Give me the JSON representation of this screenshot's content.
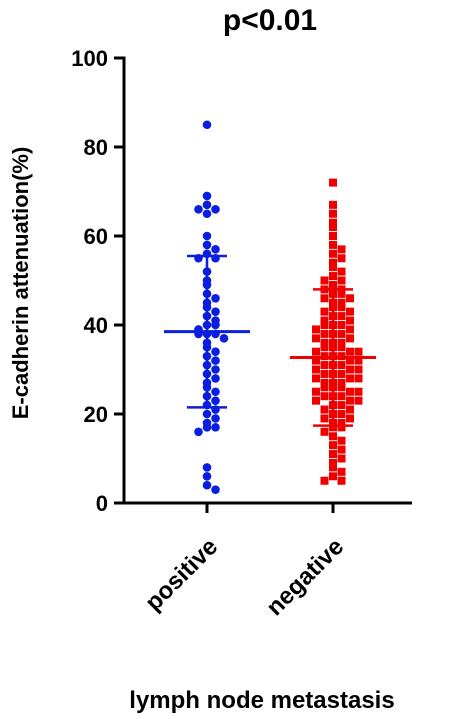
{
  "chart_data": {
    "type": "strip",
    "title": "p<0.01",
    "y_label": "E-cadherin attenuation(%)",
    "x_label": "lymph node metastasis",
    "categories": [
      "positive",
      "negative"
    ],
    "ylim": [
      0,
      100
    ],
    "yticks": [
      0,
      20,
      40,
      60,
      80,
      100
    ],
    "series": [
      {
        "name": "positive",
        "color": "#0a1ee0",
        "marker": "circle",
        "mean": 38.5,
        "sd": 17,
        "values": [
          85,
          69,
          67,
          66,
          66,
          65,
          60,
          58,
          57,
          56,
          55,
          55,
          52,
          50,
          49,
          47,
          46,
          45,
          44,
          43,
          42,
          41,
          40,
          40,
          39,
          38,
          38,
          38,
          37,
          36,
          35,
          34,
          33,
          32,
          31,
          30,
          29,
          28,
          27,
          26,
          25,
          24,
          23,
          22,
          21,
          20,
          19,
          18,
          17,
          17,
          16,
          8,
          6,
          4,
          3
        ]
      },
      {
        "name": "negative",
        "color": "#ee0000",
        "marker": "square",
        "mean": 32.7,
        "sd": 15.3,
        "values": [
          72,
          67,
          65,
          63,
          62,
          60,
          58,
          57,
          56,
          55,
          54,
          53,
          52,
          51,
          50,
          50,
          49,
          48,
          48,
          47,
          47,
          46,
          46,
          45,
          45,
          44,
          44,
          43,
          43,
          42,
          42,
          41,
          41,
          40,
          40,
          40,
          39,
          39,
          38,
          38,
          38,
          37,
          37,
          36,
          36,
          36,
          35,
          35,
          35,
          34,
          34,
          34,
          33,
          33,
          33,
          32,
          32,
          32,
          31,
          31,
          31,
          30,
          30,
          30,
          29,
          29,
          29,
          28,
          28,
          28,
          27,
          27,
          27,
          26,
          26,
          26,
          25,
          25,
          25,
          24,
          24,
          24,
          23,
          23,
          23,
          22,
          22,
          21,
          21,
          20,
          20,
          19,
          19,
          18,
          18,
          17,
          17,
          16,
          15,
          14,
          13,
          12,
          11,
          10,
          9,
          8,
          7,
          6,
          5,
          5
        ]
      }
    ]
  }
}
